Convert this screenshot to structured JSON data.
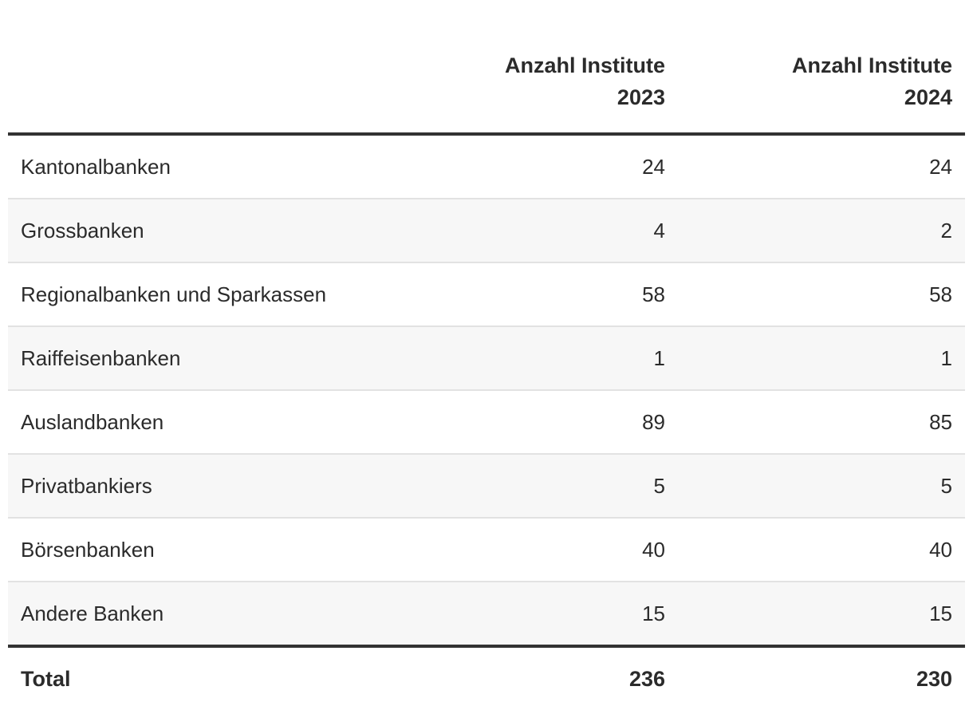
{
  "table": {
    "headers": {
      "label": "",
      "col1_line1": "Anzahl Institute",
      "col1_line2": "2023",
      "col2_line1": "Anzahl Institute",
      "col2_line2": "2024"
    },
    "rows": [
      {
        "label": "Kantonalbanken",
        "y2023": "24",
        "y2024": "24"
      },
      {
        "label": "Grossbanken",
        "y2023": "4",
        "y2024": "2"
      },
      {
        "label": "Regionalbanken und Sparkassen",
        "y2023": "58",
        "y2024": "58"
      },
      {
        "label": "Raiffeisenbanken",
        "y2023": "1",
        "y2024": "1"
      },
      {
        "label": "Auslandbanken",
        "y2023": "89",
        "y2024": "85"
      },
      {
        "label": "Privatbankiers",
        "y2023": "5",
        "y2024": "5"
      },
      {
        "label": "Börsenbanken",
        "y2023": "40",
        "y2024": "40"
      },
      {
        "label": "Andere Banken",
        "y2023": "15",
        "y2024": "15"
      }
    ],
    "total": {
      "label": "Total",
      "y2023": "236",
      "y2024": "230"
    }
  },
  "colors": {
    "text": "#2b2b2b",
    "rule": "#333333",
    "row_divider": "#e2e2e2",
    "stripe": "#f7f7f7"
  }
}
